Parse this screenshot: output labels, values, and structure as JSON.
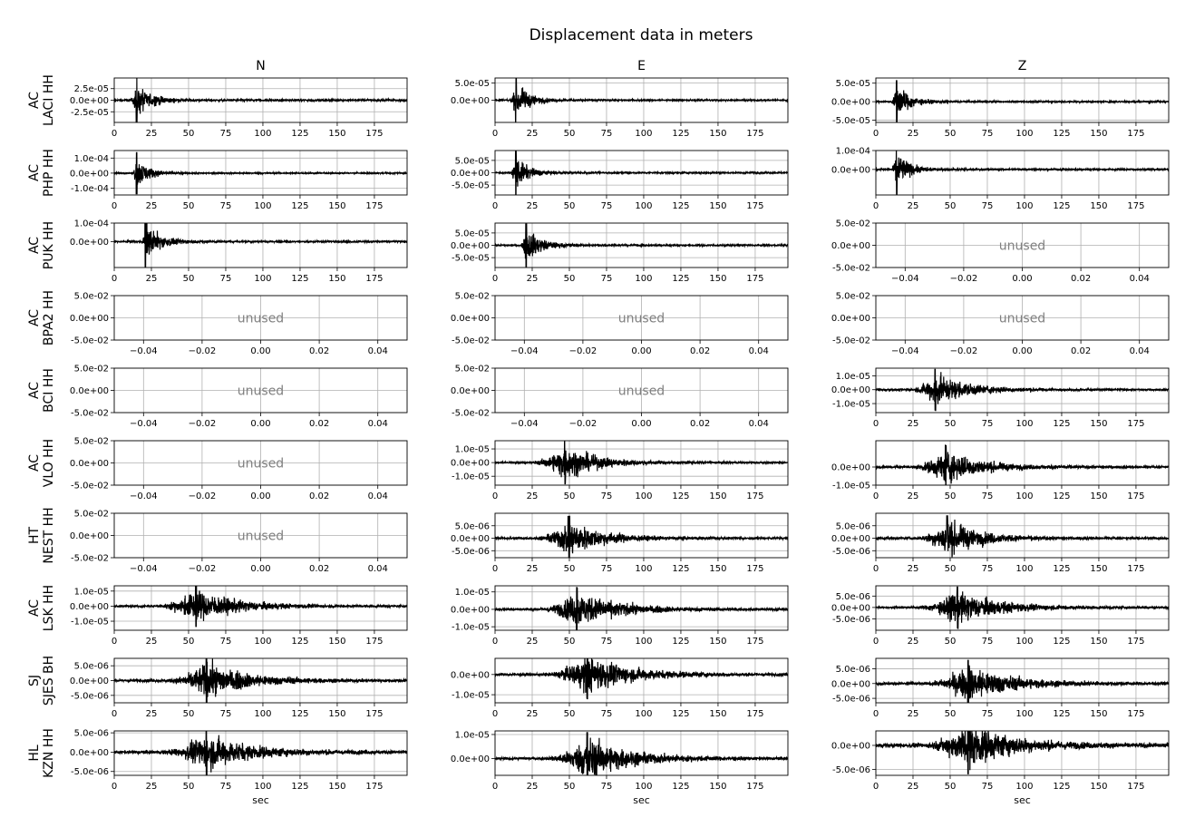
{
  "figure": {
    "title": "Displacement data in meters",
    "xlabel": "sec",
    "unused_label": "unused"
  },
  "chart_data": {
    "type": "line",
    "grid": true,
    "line_color": "#000000",
    "columns": [
      "N",
      "E",
      "Z"
    ],
    "rows": [
      {
        "network": "AC",
        "station_channel": "LACI HH"
      },
      {
        "network": "AC",
        "station_channel": "PHP HH"
      },
      {
        "network": "AC",
        "station_channel": "PUK HH"
      },
      {
        "network": "AC",
        "station_channel": "BPA2 HH"
      },
      {
        "network": "AC",
        "station_channel": "BCI HH"
      },
      {
        "network": "AC",
        "station_channel": "VLO HH"
      },
      {
        "network": "HT",
        "station_channel": "NEST HH"
      },
      {
        "network": "AC",
        "station_channel": "LSK HH"
      },
      {
        "network": "SJ",
        "station_channel": "SJES BH"
      },
      {
        "network": "HL",
        "station_channel": "KZN HH"
      }
    ],
    "time_xlim": [
      0,
      197
    ],
    "time_xticks": [
      0,
      25,
      50,
      75,
      100,
      125,
      150,
      175
    ],
    "unused_xlim": [
      -0.05,
      0.05
    ],
    "unused_xticks": [
      -0.04,
      -0.02,
      0.0,
      0.02,
      0.04
    ],
    "unused_xtick_labels": [
      "−0.04",
      "−0.02",
      "0.00",
      "0.02",
      "0.04"
    ],
    "unused_ylim": [
      -0.05,
      0.05
    ],
    "unused_ytick_labels": [
      "5.0e-02",
      "0.0e+00",
      "-5.0e-02"
    ],
    "panels": [
      [
        {
          "used": true,
          "ylim": [
            -4.8e-05,
            4.8e-05
          ],
          "yticks": [
            2.5e-05,
            0,
            -2.5e-05
          ],
          "ytick_labels": [
            "2.5e-05",
            "0.0e+00",
            "-2.5e-05"
          ],
          "arrival_sec": 11,
          "peak_sec": 15,
          "peak_amp": 4.8e-05,
          "decay_sec": 10,
          "noise_amp": 1e-06
        },
        {
          "used": true,
          "ylim": [
            -6.5e-05,
            6.5e-05
          ],
          "yticks": [
            5e-05,
            0
          ],
          "ytick_labels": [
            "5.0e-05",
            "0.0e+00"
          ],
          "arrival_sec": 10,
          "peak_sec": 14,
          "peak_amp": 6.5e-05,
          "decay_sec": 9,
          "noise_amp": 1e-06
        },
        {
          "used": true,
          "ylim": [
            -5.6e-05,
            6.4e-05
          ],
          "yticks": [
            5e-05,
            0,
            -5e-05
          ],
          "ytick_labels": [
            "5.0e-05",
            "0.0e+00",
            "-5.0e-05"
          ],
          "arrival_sec": 10,
          "peak_sec": 14,
          "peak_amp": 5.8e-05,
          "decay_sec": 9,
          "noise_amp": 1e-06
        }
      ],
      [
        {
          "used": true,
          "ylim": [
            -0.000145,
            0.00015
          ],
          "yticks": [
            0.0001,
            0,
            -0.0001
          ],
          "ytick_labels": [
            "1.0e-04",
            "0.0e+00",
            "-1.0e-04"
          ],
          "arrival_sec": 12,
          "peak_sec": 15,
          "peak_amp": 0.00014,
          "decay_sec": 8,
          "noise_amp": 2e-06
        },
        {
          "used": true,
          "ylim": [
            -9e-05,
            9e-05
          ],
          "yticks": [
            5e-05,
            0,
            -5e-05
          ],
          "ytick_labels": [
            "5.0e-05",
            "0.0e+00",
            "-5.0e-05"
          ],
          "arrival_sec": 10,
          "peak_sec": 14,
          "peak_amp": 8.8e-05,
          "decay_sec": 8,
          "noise_amp": 1.5e-06
        },
        {
          "used": true,
          "ylim": [
            -0.000135,
            0.0001
          ],
          "yticks": [
            0.0001,
            0
          ],
          "ytick_labels": [
            "1.0e-04",
            "0.0e+00"
          ],
          "arrival_sec": 10,
          "peak_sec": 14,
          "peak_amp": 0.00013,
          "decay_sec": 8,
          "noise_amp": 2e-06
        }
      ],
      [
        {
          "used": true,
          "ylim": [
            -0.00014,
            0.0001
          ],
          "yticks": [
            0.0001,
            0
          ],
          "ytick_labels": [
            "1.0e-04",
            "0.0e+00"
          ],
          "arrival_sec": 18,
          "peak_sec": 21,
          "peak_amp": 0.000135,
          "decay_sec": 10,
          "noise_amp": 2e-06
        },
        {
          "used": true,
          "ylim": [
            -9e-05,
            9e-05
          ],
          "yticks": [
            5e-05,
            0,
            -5e-05
          ],
          "ytick_labels": [
            "5.0e-05",
            "0.0e+00",
            "-5.0e-05"
          ],
          "arrival_sec": 17,
          "peak_sec": 21,
          "peak_amp": 8.8e-05,
          "decay_sec": 10,
          "noise_amp": 1.5e-06
        },
        {
          "used": false
        }
      ],
      [
        {
          "used": false
        },
        {
          "used": false
        },
        {
          "used": false
        }
      ],
      [
        {
          "used": false
        },
        {
          "used": false
        },
        {
          "used": true,
          "ylim": [
            -1.65e-05,
            1.55e-05
          ],
          "yticks": [
            1e-05,
            0,
            -1e-05
          ],
          "ytick_labels": [
            "1.0e-05",
            "0.0e+00",
            "-1.0e-05"
          ],
          "arrival_sec": 22,
          "peak_sec": 40,
          "peak_amp": 1.5e-05,
          "decay_sec": 22,
          "noise_amp": 3e-07
        }
      ],
      [
        {
          "used": false
        },
        {
          "used": true,
          "ylim": [
            -1.65e-05,
            1.6e-05
          ],
          "yticks": [
            1e-05,
            0,
            -1e-05
          ],
          "ytick_labels": [
            "1.0e-05",
            "0.0e+00",
            "-1.0e-05"
          ],
          "arrival_sec": 22,
          "peak_sec": 47,
          "peak_amp": 1.55e-05,
          "decay_sec": 22,
          "noise_amp": 3e-07
        },
        {
          "used": true,
          "ylim": [
            -1e-05,
            1.45e-05
          ],
          "yticks": [
            0,
            -1e-05
          ],
          "ytick_labels": [
            "0.0e+00",
            "-1.0e-05"
          ],
          "arrival_sec": 22,
          "peak_sec": 47,
          "peak_amp": 1.2e-05,
          "decay_sec": 22,
          "noise_amp": 3e-07
        }
      ],
      [
        {
          "used": false
        },
        {
          "used": true,
          "ylim": [
            -7.8e-06,
            1e-05
          ],
          "yticks": [
            5e-06,
            0,
            -5e-06
          ],
          "ytick_labels": [
            "5.0e-06",
            "0.0e+00",
            "-5.0e-06"
          ],
          "arrival_sec": 25,
          "peak_sec": 50,
          "peak_amp": 9e-06,
          "decay_sec": 22,
          "noise_amp": 2e-07
        },
        {
          "used": true,
          "ylim": [
            -7.8e-06,
            1e-05
          ],
          "yticks": [
            5e-06,
            0,
            -5e-06
          ],
          "ytick_labels": [
            "5.0e-06",
            "0.0e+00",
            "-5.0e-06"
          ],
          "arrival_sec": 25,
          "peak_sec": 48,
          "peak_amp": 9e-06,
          "decay_sec": 22,
          "noise_amp": 2e-07
        }
      ],
      [
        {
          "used": true,
          "ylim": [
            -1.6e-05,
            1.35e-05
          ],
          "yticks": [
            1e-05,
            0,
            -1e-05
          ],
          "ytick_labels": [
            "1.0e-05",
            "0.0e+00",
            "-1.0e-05"
          ],
          "arrival_sec": 25,
          "peak_sec": 55,
          "peak_amp": 1.35e-05,
          "decay_sec": 28,
          "noise_amp": 3e-07
        },
        {
          "used": true,
          "ylim": [
            -1.2e-05,
            1.35e-05
          ],
          "yticks": [
            1e-05,
            0,
            -1e-05
          ],
          "ytick_labels": [
            "1.0e-05",
            "0.0e+00",
            "-1.0e-05"
          ],
          "arrival_sec": 27,
          "peak_sec": 55,
          "peak_amp": 1.25e-05,
          "decay_sec": 28,
          "noise_amp": 3e-07
        },
        {
          "used": true,
          "ylim": [
            -1e-05,
            9.5e-06
          ],
          "yticks": [
            5e-06,
            0,
            -5e-06
          ],
          "ytick_labels": [
            "5.0e-06",
            "0.0e+00",
            "-5.0e-06"
          ],
          "arrival_sec": 25,
          "peak_sec": 55,
          "peak_amp": 9.2e-06,
          "decay_sec": 28,
          "noise_amp": 2e-07
        }
      ],
      [
        {
          "used": true,
          "ylim": [
            -7.5e-06,
            7.5e-06
          ],
          "yticks": [
            5e-06,
            0,
            -5e-06
          ],
          "ytick_labels": [
            "5.0e-06",
            "0.0e+00",
            "-5.0e-06"
          ],
          "arrival_sec": 32,
          "peak_sec": 62,
          "peak_amp": 7.5e-06,
          "decay_sec": 28,
          "noise_amp": 2e-07
        },
        {
          "used": true,
          "ylim": [
            -1.4e-05,
            8e-06
          ],
          "yticks": [
            0,
            -1e-05
          ],
          "ytick_labels": [
            "0.0e+00",
            "-1.0e-05"
          ],
          "arrival_sec": 32,
          "peak_sec": 62,
          "peak_amp": 1.2e-05,
          "decay_sec": 28,
          "noise_amp": 3e-07
        },
        {
          "used": true,
          "ylim": [
            -6.5e-06,
            8.5e-06
          ],
          "yticks": [
            5e-06,
            0,
            -5e-06
          ],
          "ytick_labels": [
            "5.0e-06",
            "0.0e+00",
            "-5.0e-06"
          ],
          "arrival_sec": 32,
          "peak_sec": 62,
          "peak_amp": 8e-06,
          "decay_sec": 28,
          "noise_amp": 2e-07
        }
      ],
      [
        {
          "used": true,
          "ylim": [
            -6e-06,
            5.5e-06
          ],
          "yticks": [
            5e-06,
            0,
            -5e-06
          ],
          "ytick_labels": [
            "5.0e-06",
            "0.0e+00",
            "-5.0e-06"
          ],
          "arrival_sec": 30,
          "peak_sec": 62,
          "peak_amp": 6e-06,
          "decay_sec": 28,
          "noise_amp": 2e-07
        },
        {
          "used": true,
          "ylim": [
            -7e-06,
            1.15e-05
          ],
          "yticks": [
            1e-05,
            0
          ],
          "ytick_labels": [
            "1.0e-05",
            "0.0e+00"
          ],
          "arrival_sec": 32,
          "peak_sec": 62,
          "peak_amp": 1.1e-05,
          "decay_sec": 28,
          "noise_amp": 2.5e-07
        },
        {
          "used": true,
          "ylim": [
            -6.2e-06,
            3e-06
          ],
          "yticks": [
            0,
            -5e-06
          ],
          "ytick_labels": [
            "0.0e+00",
            "-5.0e-06"
          ],
          "arrival_sec": 30,
          "peak_sec": 62,
          "peak_amp": 6e-06,
          "decay_sec": 28,
          "noise_amp": 2e-07
        }
      ]
    ]
  }
}
